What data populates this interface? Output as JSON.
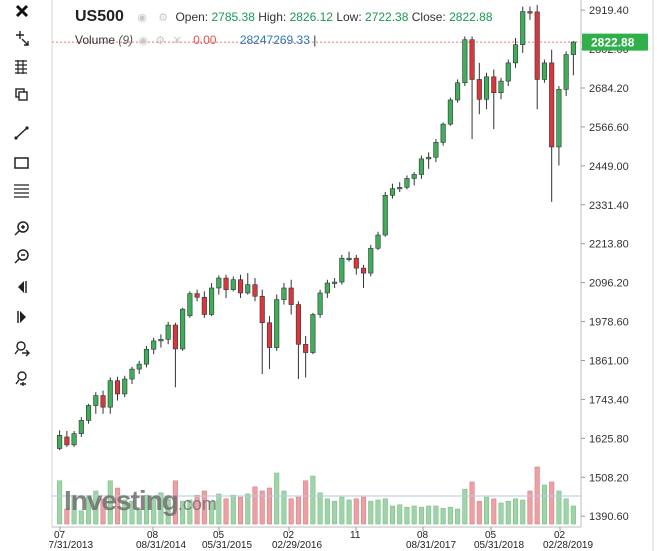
{
  "toolbar": {
    "tools": [
      "close-icon",
      "crosshair-icon",
      "fibonacci-icon",
      "copy-icon",
      "trendline-icon",
      "rectangle-icon",
      "horizontal-lines-icon",
      "zoom-in-icon",
      "zoom-out-icon",
      "scroll-left-icon",
      "scroll-right-icon",
      "reset-zoom-icon",
      "fit-icon"
    ]
  },
  "header": {
    "symbol": "US500",
    "open_label": "Open:",
    "open": "2785.38",
    "high_label": "High:",
    "high": "2826.12",
    "low_label": "Low:",
    "low": "2722.38",
    "close_label": "Close:",
    "close": "2822.88",
    "volume_label": "Volume",
    "volume_period": "(9)",
    "volume_change": "0.00",
    "volume_value": "28247269.33"
  },
  "price_badge": "2822.88",
  "logo": {
    "main": "Investing",
    "domain": ".com"
  },
  "colors": {
    "up": "#3fae5a",
    "down": "#d9363e",
    "vol_up": "#9fd4a8",
    "vol_down": "#eba0a4",
    "last_price": "#2fb04a",
    "guide": "#e97a6a"
  },
  "chart_data": {
    "type": "candlestick",
    "y_ticks": [
      "2919.40",
      "2802.00",
      "2684.20",
      "2566.60",
      "2449.00",
      "2331.40",
      "2213.80",
      "2096.20",
      "1978.60",
      "1861.00",
      "1743.40",
      "1625.80",
      "1508.20",
      "1390.60"
    ],
    "x_ticks": [
      {
        "top": "07",
        "bottom": "07/31/2013"
      },
      {
        "top": "08",
        "bottom": "08/31/2014"
      },
      {
        "top": "05",
        "bottom": "05/31/2015"
      },
      {
        "top": "02",
        "bottom": "02/29/2016"
      },
      {
        "top": "11",
        "bottom": ""
      },
      {
        "top": "08",
        "bottom": "08/31/2017"
      },
      {
        "top": "05",
        "bottom": "05/31/2018"
      },
      {
        "top": "02",
        "bottom": "02/28/2019"
      }
    ],
    "ylim": [
      1358,
      2950
    ],
    "last_price": 2822.88,
    "candles": [
      [
        1595,
        1635,
        1590,
        1650,
        72
      ],
      [
        1630,
        1606,
        1600,
        1648,
        25
      ],
      [
        1606,
        1640,
        1600,
        1648,
        48
      ],
      [
        1640,
        1680,
        1630,
        1690,
        22
      ],
      [
        1680,
        1725,
        1670,
        1730,
        45
      ],
      [
        1725,
        1755,
        1700,
        1765,
        55
      ],
      [
        1755,
        1720,
        1700,
        1770,
        42
      ],
      [
        1720,
        1800,
        1700,
        1810,
        72
      ],
      [
        1800,
        1760,
        1740,
        1812,
        60
      ],
      [
        1760,
        1805,
        1750,
        1815,
        40
      ],
      [
        1805,
        1835,
        1790,
        1842,
        38
      ],
      [
        1835,
        1850,
        1820,
        1860,
        25
      ],
      [
        1850,
        1895,
        1840,
        1905,
        48
      ],
      [
        1895,
        1920,
        1880,
        1930,
        45
      ],
      [
        1920,
        1925,
        1900,
        1940,
        52
      ],
      [
        1925,
        1968,
        1910,
        1978,
        42
      ],
      [
        1968,
        1896,
        1780,
        1975,
        72
      ],
      [
        1896,
        2016,
        1890,
        2020,
        38
      ],
      [
        1996,
        2063,
        1990,
        2070,
        40
      ],
      [
        2063,
        2052,
        2040,
        2075,
        48
      ],
      [
        2052,
        2000,
        1990,
        2070,
        55
      ],
      [
        2000,
        2080,
        1995,
        2095,
        38
      ],
      [
        2080,
        2110,
        2060,
        2118,
        50
      ],
      [
        2110,
        2075,
        2050,
        2120,
        42
      ],
      [
        2075,
        2105,
        2070,
        2115,
        48
      ],
      [
        2105,
        2065,
        2050,
        2120,
        45
      ],
      [
        2065,
        2090,
        2060,
        2125,
        50
      ],
      [
        2090,
        2055,
        2040,
        2110,
        62
      ],
      [
        2055,
        1975,
        1820,
        2075,
        55
      ],
      [
        1975,
        1900,
        1835,
        1995,
        60
      ],
      [
        1900,
        2045,
        1890,
        2060,
        85
      ],
      [
        2045,
        2080,
        2030,
        2095,
        55
      ],
      [
        2080,
        2030,
        2000,
        2105,
        42
      ],
      [
        2030,
        1910,
        1805,
        2040,
        45
      ],
      [
        1910,
        1885,
        1810,
        1935,
        72
      ],
      [
        1885,
        2000,
        1880,
        2005,
        80
      ],
      [
        2000,
        2065,
        1990,
        2075,
        52
      ],
      [
        2065,
        2095,
        2050,
        2105,
        42
      ],
      [
        2095,
        2098,
        2080,
        2110,
        38
      ],
      [
        2098,
        2170,
        2090,
        2180,
        45
      ],
      [
        2170,
        2170,
        2160,
        2190,
        40
      ],
      [
        2170,
        2140,
        2120,
        2180,
        42
      ],
      [
        2140,
        2125,
        2080,
        2150,
        45
      ],
      [
        2125,
        2200,
        2115,
        2210,
        38
      ],
      [
        2200,
        2240,
        2195,
        2250,
        40
      ],
      [
        2240,
        2360,
        2235,
        2370,
        42
      ],
      [
        2360,
        2380,
        2350,
        2395,
        30
      ],
      [
        2380,
        2384,
        2370,
        2400,
        32
      ],
      [
        2384,
        2411,
        2378,
        2420,
        28
      ],
      [
        2411,
        2423,
        2390,
        2430,
        30
      ],
      [
        2423,
        2470,
        2410,
        2480,
        28
      ],
      [
        2470,
        2475,
        2440,
        2490,
        30
      ],
      [
        2475,
        2520,
        2460,
        2530,
        30
      ],
      [
        2520,
        2575,
        2510,
        2580,
        26
      ],
      [
        2575,
        2648,
        2570,
        2655,
        28
      ],
      [
        2648,
        2700,
        2640,
        2710,
        25
      ],
      [
        2700,
        2830,
        2690,
        2840,
        58
      ],
      [
        2830,
        2710,
        2530,
        2840,
        70
      ],
      [
        2710,
        2650,
        2605,
        2760,
        38
      ],
      [
        2650,
        2718,
        2620,
        2730,
        45
      ],
      [
        2718,
        2670,
        2560,
        2740,
        42
      ],
      [
        2670,
        2705,
        2650,
        2715,
        35
      ],
      [
        2705,
        2760,
        2690,
        2770,
        38
      ],
      [
        2760,
        2815,
        2745,
        2835,
        42
      ],
      [
        2815,
        2915,
        2790,
        2930,
        40
      ],
      [
        2915,
        2914,
        2890,
        2930,
        55
      ],
      [
        2914,
        2710,
        2620,
        2935,
        95
      ],
      [
        2710,
        2760,
        2700,
        2770,
        65
      ],
      [
        2760,
        2506,
        2340,
        2800,
        70
      ],
      [
        2506,
        2680,
        2450,
        2690,
        55
      ],
      [
        2680,
        2785,
        2660,
        2795,
        42
      ],
      [
        2785,
        2822.88,
        2722.38,
        2826.12,
        30
      ]
    ]
  }
}
